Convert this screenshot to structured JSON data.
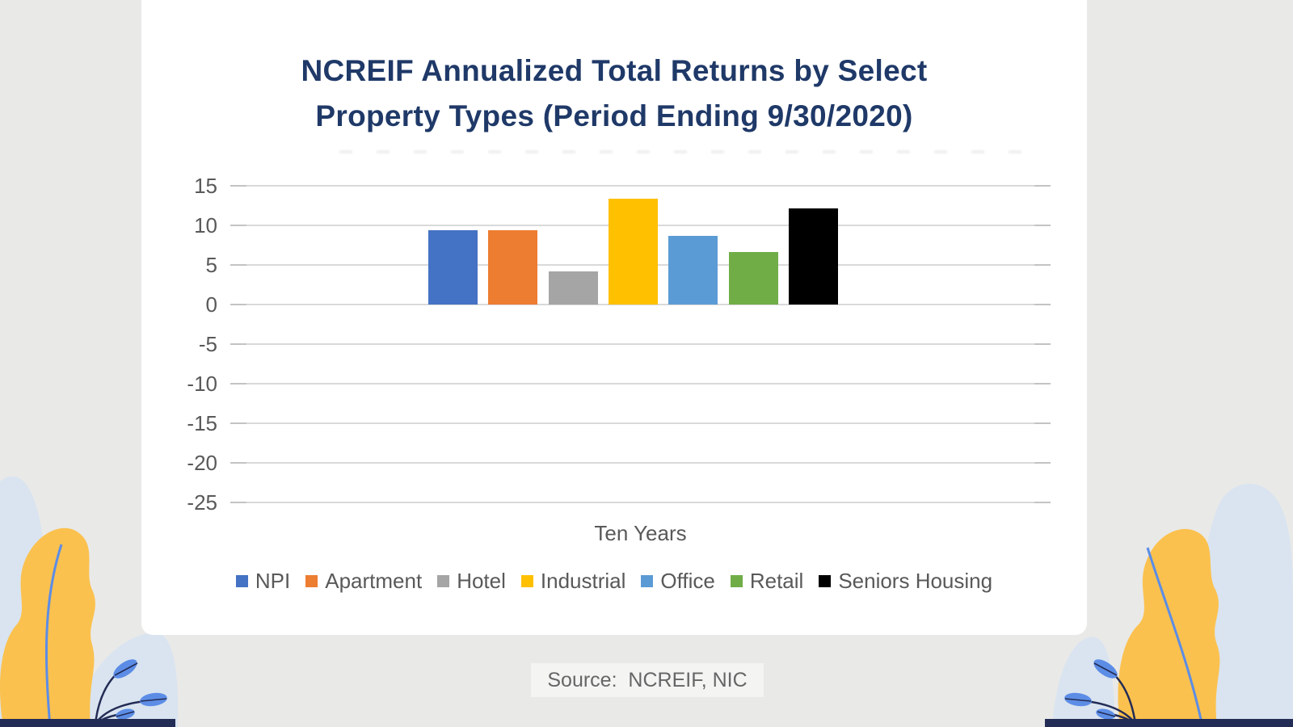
{
  "theme": {
    "pageBg": "#e9e9e8",
    "cardBg": "#ffffff",
    "titleNavy": "#1f3968",
    "axisGray": "#595959",
    "gridline": "#d9d9d9",
    "gridstub": "#c3c3c3",
    "paleBlue": "#d9e4f0",
    "leafYellow": "#fbc14e",
    "veinBlue": "#5c8de6",
    "decorNavy": "#232c55",
    "sourceBg": "#f4f4f3",
    "sourceText": "#666666"
  },
  "chart_data": {
    "type": "bar",
    "title": "NCREIF Annualized Total Returns by Select Property Types (Period Ending 9/30/2020)",
    "title_line1": "NCREIF Annualized Total Returns by Select",
    "title_line2": "Property Types (Period Ending 9/30/2020)",
    "categories": [
      "Ten Years"
    ],
    "series": [
      {
        "name": "NPI",
        "values": [
          9.4
        ],
        "color": "#4472C4"
      },
      {
        "name": "Apartment",
        "values": [
          9.4
        ],
        "color": "#ED7D31"
      },
      {
        "name": "Hotel",
        "values": [
          4.2
        ],
        "color": "#A5A5A5"
      },
      {
        "name": "Industrial",
        "values": [
          13.4
        ],
        "color": "#FFC000"
      },
      {
        "name": "Office",
        "values": [
          8.7
        ],
        "color": "#5B9BD5"
      },
      {
        "name": "Retail",
        "values": [
          6.6
        ],
        "color": "#70AD47"
      },
      {
        "name": "Seniors Housing",
        "values": [
          12.1
        ],
        "color": "#000000"
      }
    ],
    "xlabel": "Ten Years",
    "ylim": [
      -25,
      15
    ],
    "yticks": [
      15,
      10,
      5,
      0,
      -5,
      -10,
      -15,
      -20,
      -25
    ],
    "grid": true,
    "legend_position": "bottom"
  },
  "source": {
    "label": "Source:  NCREIF, NIC"
  }
}
